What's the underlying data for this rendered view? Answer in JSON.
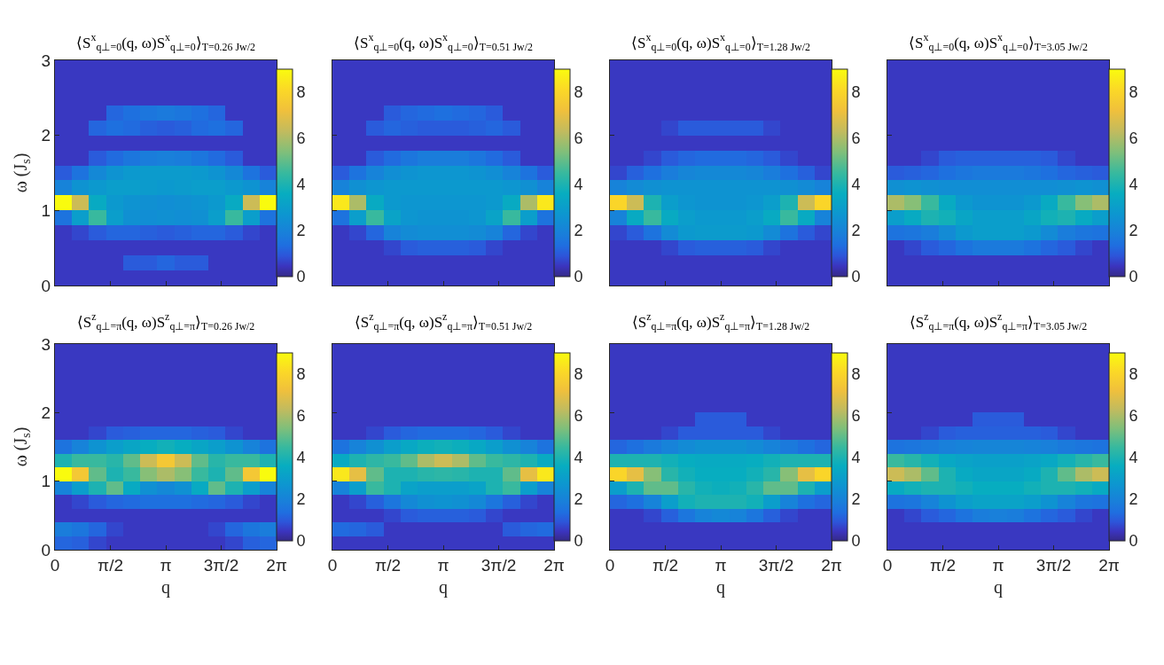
{
  "chart_data": [
    {
      "type": "heatmap",
      "title": "⟨S$^{x}$$_{q⊥=0}$(q, ω)S$^{x}$$_{q⊥=0}$⟩$_{T=0.26 Jw/2}$",
      "ylabel": "ω (J$_{s}$)",
      "tick_labels": "y",
      "clim": [
        0,
        9
      ],
      "cticks": [
        0,
        2,
        4,
        6,
        8
      ],
      "xlim": [
        0,
        6.283
      ],
      "xticks": [
        {
          "value": 0,
          "label": null
        },
        {
          "value": 1.571,
          "label": null
        },
        {
          "value": 3.142,
          "label": null
        },
        {
          "value": 4.712,
          "label": null
        },
        {
          "value": 6.283,
          "label": null
        }
      ],
      "ylim": [
        0,
        3
      ],
      "yticks": [
        0,
        1,
        2,
        3
      ],
      "x": [
        0.242,
        0.725,
        1.208,
        1.691,
        2.175,
        2.658,
        3.142,
        3.625,
        4.108,
        4.591,
        5.075,
        5.558,
        6.041
      ],
      "y": [
        2.9,
        2.7,
        2.5,
        2.3,
        2.1,
        1.9,
        1.7,
        1.5,
        1.3,
        1.1,
        0.9,
        0.7,
        0.5,
        0.3,
        0.1
      ],
      "cells": [
        [
          0.5,
          0.5,
          0.5,
          0.5,
          0.5,
          0.5,
          0.5,
          0.5,
          0.5,
          0.5,
          0.5,
          0.5,
          0.5
        ],
        [
          0.5,
          0.5,
          0.5,
          0.5,
          0.5,
          0.5,
          0.5,
          0.5,
          0.5,
          0.5,
          0.5,
          0.5,
          0.5
        ],
        [
          0.5,
          0.5,
          0.5,
          0.5,
          0.5,
          0.5,
          0.5,
          0.5,
          0.5,
          0.5,
          0.5,
          0.5,
          0.5
        ],
        [
          0.5,
          0.5,
          0.5,
          1.2,
          1.4,
          1.6,
          1.7,
          1.6,
          1.4,
          1.2,
          0.5,
          0.5,
          0.5
        ],
        [
          0.5,
          0.5,
          1.2,
          1.4,
          1.3,
          1.1,
          1,
          1.1,
          1.3,
          1.4,
          1.2,
          0.5,
          0.5
        ],
        [
          0.5,
          0.5,
          0.5,
          0.5,
          0.5,
          0.5,
          0.5,
          0.5,
          0.5,
          0.5,
          0.5,
          0.5,
          0.5
        ],
        [
          0.5,
          0.5,
          1,
          1.3,
          1.6,
          1.8,
          1.9,
          1.8,
          1.6,
          1.3,
          1,
          0.5,
          0.5
        ],
        [
          1,
          1.5,
          2.2,
          2.6,
          2.8,
          2.9,
          2.9,
          2.9,
          2.8,
          2.6,
          2.2,
          1.5,
          1
        ],
        [
          2,
          2.6,
          2.8,
          3,
          3,
          2.9,
          2.8,
          2.9,
          3,
          3,
          2.8,
          2.6,
          2
        ],
        [
          9,
          6.5,
          3.5,
          2.8,
          2.6,
          2.5,
          2.4,
          2.5,
          2.6,
          2.8,
          3.5,
          6.5,
          9
        ],
        [
          1.5,
          3,
          4.5,
          3,
          2.5,
          2.4,
          2.5,
          2.4,
          2.5,
          3,
          4.5,
          3,
          1.5
        ],
        [
          0.5,
          0.7,
          1,
          1.2,
          1.2,
          1.1,
          1,
          1.1,
          1.2,
          1.2,
          1,
          0.7,
          0.5
        ],
        [
          0.5,
          0.5,
          0.5,
          0.5,
          0.5,
          0.5,
          0.5,
          0.5,
          0.5,
          0.5,
          0.5,
          0.5,
          0.5
        ],
        [
          0.5,
          0.5,
          0.5,
          0.5,
          1,
          1,
          1.2,
          1,
          1,
          0.5,
          0.5,
          0.5,
          0.5
        ],
        [
          0.5,
          0.5,
          0.5,
          0.5,
          0.5,
          0.5,
          0.5,
          0.5,
          0.5,
          0.5,
          0.5,
          0.5,
          0.5
        ]
      ]
    },
    {
      "type": "heatmap",
      "title": "⟨S$^{x}$$_{q⊥=0}$(q, ω)S$^{x}$$_{q⊥=0}$⟩$_{T=0.51 Jw/2}$",
      "tick_labels": false,
      "clim": [
        0,
        9
      ],
      "cticks": [
        0,
        2,
        4,
        6,
        8
      ],
      "xlim": [
        0,
        6.283
      ],
      "xticks": [
        {
          "value": 0,
          "label": null
        },
        {
          "value": 1.571,
          "label": null
        },
        {
          "value": 3.142,
          "label": null
        },
        {
          "value": 4.712,
          "label": null
        },
        {
          "value": 6.283,
          "label": null
        }
      ],
      "ylim": [
        0,
        3
      ],
      "yticks": [
        0,
        1,
        2,
        3
      ],
      "x": [
        0.242,
        0.725,
        1.208,
        1.691,
        2.175,
        2.658,
        3.142,
        3.625,
        4.108,
        4.591,
        5.075,
        5.558,
        6.041
      ],
      "y": [
        2.9,
        2.7,
        2.5,
        2.3,
        2.1,
        1.9,
        1.7,
        1.5,
        1.3,
        1.1,
        0.9,
        0.7,
        0.5,
        0.3,
        0.1
      ],
      "cells": [
        [
          0.5,
          0.5,
          0.5,
          0.5,
          0.5,
          0.5,
          0.5,
          0.5,
          0.5,
          0.5,
          0.5,
          0.5,
          0.5
        ],
        [
          0.5,
          0.5,
          0.5,
          0.5,
          0.5,
          0.5,
          0.5,
          0.5,
          0.5,
          0.5,
          0.5,
          0.5,
          0.5
        ],
        [
          0.5,
          0.5,
          0.5,
          0.5,
          0.5,
          0.5,
          0.5,
          0.5,
          0.5,
          0.5,
          0.5,
          0.5,
          0.5
        ],
        [
          0.5,
          0.5,
          0.5,
          1,
          1.2,
          1.3,
          1.4,
          1.3,
          1.2,
          1,
          0.5,
          0.5,
          0.5
        ],
        [
          0.5,
          0.5,
          1,
          1.2,
          1.1,
          1,
          1,
          1,
          1.1,
          1.2,
          1,
          0.5,
          0.5
        ],
        [
          0.5,
          0.5,
          0.5,
          0.5,
          0.5,
          0.5,
          0.5,
          0.5,
          0.5,
          0.5,
          0.5,
          0.5,
          0.5
        ],
        [
          0.5,
          0.5,
          1,
          1.3,
          1.6,
          1.8,
          1.8,
          1.8,
          1.6,
          1.3,
          1,
          0.5,
          0.5
        ],
        [
          1,
          1.5,
          2,
          2.4,
          2.6,
          2.7,
          2.7,
          2.7,
          2.6,
          2.4,
          2,
          1.5,
          1
        ],
        [
          2,
          2.5,
          2.7,
          2.8,
          2.8,
          2.8,
          2.8,
          2.8,
          2.8,
          2.8,
          2.7,
          2.5,
          2
        ],
        [
          8.5,
          6,
          3.5,
          2.8,
          2.7,
          2.7,
          2.7,
          2.7,
          2.7,
          2.8,
          3.5,
          6,
          8.5
        ],
        [
          1.5,
          3,
          4.5,
          3.2,
          2.7,
          2.6,
          2.6,
          2.6,
          2.7,
          3.2,
          4.5,
          3,
          1.5
        ],
        [
          0.5,
          0.7,
          1.2,
          2,
          2.3,
          2.4,
          2.4,
          2.4,
          2.3,
          2,
          1.2,
          0.7,
          0.5
        ],
        [
          0.5,
          0.5,
          0.5,
          0.7,
          1,
          1.1,
          1.1,
          1.1,
          1,
          0.7,
          0.5,
          0.5,
          0.5
        ],
        [
          0.5,
          0.5,
          0.5,
          0.5,
          0.5,
          0.5,
          0.5,
          0.5,
          0.5,
          0.5,
          0.5,
          0.5,
          0.5
        ],
        [
          0.5,
          0.5,
          0.5,
          0.5,
          0.5,
          0.5,
          0.5,
          0.5,
          0.5,
          0.5,
          0.5,
          0.5,
          0.5
        ]
      ]
    },
    {
      "type": "heatmap",
      "title": "⟨S$^{x}$$_{q⊥=0}$(q, ω)S$^{x}$$_{q⊥=0}$⟩$_{T=1.28 Jw/2}$",
      "tick_labels": false,
      "clim": [
        0,
        9
      ],
      "cticks": [
        0,
        2,
        4,
        6,
        8
      ],
      "xlim": [
        0,
        6.283
      ],
      "xticks": [
        {
          "value": 0,
          "label": null
        },
        {
          "value": 1.571,
          "label": null
        },
        {
          "value": 3.142,
          "label": null
        },
        {
          "value": 4.712,
          "label": null
        },
        {
          "value": 6.283,
          "label": null
        }
      ],
      "ylim": [
        0,
        3
      ],
      "yticks": [
        0,
        1,
        2,
        3
      ],
      "x": [
        0.242,
        0.725,
        1.208,
        1.691,
        2.175,
        2.658,
        3.142,
        3.625,
        4.108,
        4.591,
        5.075,
        5.558,
        6.041
      ],
      "y": [
        2.9,
        2.7,
        2.5,
        2.3,
        2.1,
        1.9,
        1.7,
        1.5,
        1.3,
        1.1,
        0.9,
        0.7,
        0.5,
        0.3,
        0.1
      ],
      "cells": [
        [
          0.5,
          0.5,
          0.5,
          0.5,
          0.5,
          0.5,
          0.5,
          0.5,
          0.5,
          0.5,
          0.5,
          0.5,
          0.5
        ],
        [
          0.5,
          0.5,
          0.5,
          0.5,
          0.5,
          0.5,
          0.5,
          0.5,
          0.5,
          0.5,
          0.5,
          0.5,
          0.5
        ],
        [
          0.5,
          0.5,
          0.5,
          0.5,
          0.5,
          0.5,
          0.5,
          0.5,
          0.5,
          0.5,
          0.5,
          0.5,
          0.5
        ],
        [
          0.5,
          0.5,
          0.5,
          0.5,
          0.5,
          0.5,
          0.5,
          0.5,
          0.5,
          0.5,
          0.5,
          0.5,
          0.5
        ],
        [
          0.5,
          0.5,
          0.5,
          0.7,
          1,
          1,
          1,
          1,
          1,
          0.7,
          0.5,
          0.5,
          0.5
        ],
        [
          0.5,
          0.5,
          0.5,
          0.5,
          0.5,
          0.5,
          0.5,
          0.5,
          0.5,
          0.5,
          0.5,
          0.5,
          0.5
        ],
        [
          0.5,
          0.5,
          0.7,
          1,
          1.2,
          1.3,
          1.3,
          1.3,
          1.2,
          1,
          0.7,
          0.5,
          0.5
        ],
        [
          0.7,
          1.1,
          1.4,
          1.8,
          2.1,
          2.2,
          2.2,
          2.2,
          2.1,
          1.8,
          1.4,
          1.1,
          0.7
        ],
        [
          2,
          2.3,
          2.5,
          2.6,
          2.6,
          2.6,
          2.6,
          2.6,
          2.6,
          2.6,
          2.5,
          2.3,
          2
        ],
        [
          8,
          6.5,
          4,
          3,
          2.7,
          2.6,
          2.6,
          2.6,
          2.7,
          3,
          4,
          6.5,
          8
        ],
        [
          2,
          3.5,
          4.5,
          3.5,
          3,
          2.8,
          2.8,
          2.8,
          3,
          3.5,
          4.5,
          3.5,
          2
        ],
        [
          0.7,
          1,
          1.5,
          2.3,
          2.8,
          2.9,
          2.9,
          2.9,
          2.8,
          2.3,
          1.5,
          1,
          0.7
        ],
        [
          0.5,
          0.5,
          0.5,
          0.7,
          1,
          1.1,
          1.1,
          1.1,
          1,
          0.7,
          0.5,
          0.5,
          0.5
        ],
        [
          0.5,
          0.5,
          0.5,
          0.5,
          0.5,
          0.5,
          0.5,
          0.5,
          0.5,
          0.5,
          0.5,
          0.5,
          0.5
        ],
        [
          0.5,
          0.5,
          0.5,
          0.5,
          0.5,
          0.5,
          0.5,
          0.5,
          0.5,
          0.5,
          0.5,
          0.5,
          0.5
        ]
      ]
    },
    {
      "type": "heatmap",
      "title": "⟨S$^{x}$$_{q⊥=0}$(q, ω)S$^{x}$$_{q⊥=0}$⟩$_{T=3.05 Jw/2}$",
      "tick_labels": false,
      "clim": [
        0,
        9
      ],
      "cticks": [
        0,
        2,
        4,
        6,
        8
      ],
      "xlim": [
        0,
        6.283
      ],
      "xticks": [
        {
          "value": 0,
          "label": null
        },
        {
          "value": 1.571,
          "label": null
        },
        {
          "value": 3.142,
          "label": null
        },
        {
          "value": 4.712,
          "label": null
        },
        {
          "value": 6.283,
          "label": null
        }
      ],
      "ylim": [
        0,
        3
      ],
      "yticks": [
        0,
        1,
        2,
        3
      ],
      "x": [
        0.242,
        0.725,
        1.208,
        1.691,
        2.175,
        2.658,
        3.142,
        3.625,
        4.108,
        4.591,
        5.075,
        5.558,
        6.041
      ],
      "y": [
        2.9,
        2.7,
        2.5,
        2.3,
        2.1,
        1.9,
        1.7,
        1.5,
        1.3,
        1.1,
        0.9,
        0.7,
        0.5,
        0.3,
        0.1
      ],
      "cells": [
        [
          0.5,
          0.5,
          0.5,
          0.5,
          0.5,
          0.5,
          0.5,
          0.5,
          0.5,
          0.5,
          0.5,
          0.5,
          0.5
        ],
        [
          0.5,
          0.5,
          0.5,
          0.5,
          0.5,
          0.5,
          0.5,
          0.5,
          0.5,
          0.5,
          0.5,
          0.5,
          0.5
        ],
        [
          0.5,
          0.5,
          0.5,
          0.5,
          0.5,
          0.5,
          0.5,
          0.5,
          0.5,
          0.5,
          0.5,
          0.5,
          0.5
        ],
        [
          0.5,
          0.5,
          0.5,
          0.5,
          0.5,
          0.5,
          0.5,
          0.5,
          0.5,
          0.5,
          0.5,
          0.5,
          0.5
        ],
        [
          0.5,
          0.5,
          0.5,
          0.5,
          0.5,
          0.5,
          0.5,
          0.5,
          0.5,
          0.5,
          0.5,
          0.5,
          0.5
        ],
        [
          0.5,
          0.5,
          0.5,
          0.5,
          0.5,
          0.5,
          0.5,
          0.5,
          0.5,
          0.5,
          0.5,
          0.5,
          0.5
        ],
        [
          0.5,
          0.5,
          0.7,
          1,
          1.1,
          1.1,
          1.1,
          1.1,
          1.1,
          1,
          0.7,
          0.5,
          0.5
        ],
        [
          1,
          1.1,
          1.2,
          1.4,
          1.6,
          1.7,
          1.7,
          1.7,
          1.6,
          1.4,
          1.2,
          1.1,
          1
        ],
        [
          2.5,
          2.6,
          2.5,
          2.4,
          2.4,
          2.4,
          2.4,
          2.4,
          2.4,
          2.4,
          2.5,
          2.6,
          2.5
        ],
        [
          6,
          5.5,
          4.5,
          3.5,
          2.8,
          2.6,
          2.6,
          2.6,
          2.8,
          3.5,
          4.5,
          5.5,
          6
        ],
        [
          3,
          3.5,
          4,
          3.8,
          3.3,
          3,
          3,
          3,
          3.3,
          3.8,
          4,
          3.5,
          3
        ],
        [
          1.5,
          1.6,
          1.8,
          2.3,
          2.8,
          3,
          3,
          3,
          2.8,
          2.3,
          1.8,
          1.6,
          1.5
        ],
        [
          0.5,
          0.7,
          1,
          1.2,
          1.5,
          1.7,
          1.7,
          1.7,
          1.5,
          1.2,
          1,
          0.7,
          0.5
        ],
        [
          0.5,
          0.5,
          0.5,
          0.5,
          0.5,
          0.5,
          0.5,
          0.5,
          0.5,
          0.5,
          0.5,
          0.5,
          0.5
        ],
        [
          0.5,
          0.5,
          0.5,
          0.5,
          0.5,
          0.5,
          0.5,
          0.5,
          0.5,
          0.5,
          0.5,
          0.5,
          0.5
        ]
      ]
    },
    {
      "type": "heatmap",
      "title": "⟨S$^{z}$$_{q⊥=π}$(q, ω)S$^{z}$$_{q⊥=π}$⟩$_{T=0.26 Jw/2}$",
      "xlabel": "q",
      "ylabel": "ω (J$_{s}$)",
      "clim": [
        0,
        9
      ],
      "cticks": [
        0,
        2,
        4,
        6,
        8
      ],
      "xlim": [
        0,
        6.283
      ],
      "xticks": [
        {
          "value": 0,
          "label": "0"
        },
        {
          "value": 1.571,
          "label": "π/2"
        },
        {
          "value": 3.142,
          "label": "π"
        },
        {
          "value": 4.712,
          "label": "3π/2"
        },
        {
          "value": 6.283,
          "label": "2π"
        }
      ],
      "ylim": [
        0,
        3
      ],
      "yticks": [
        0,
        1,
        2,
        3
      ],
      "x": [
        0.242,
        0.725,
        1.208,
        1.691,
        2.175,
        2.658,
        3.142,
        3.625,
        4.108,
        4.591,
        5.075,
        5.558,
        6.041
      ],
      "y": [
        2.9,
        2.7,
        2.5,
        2.3,
        2.1,
        1.9,
        1.7,
        1.5,
        1.3,
        1.1,
        0.9,
        0.7,
        0.5,
        0.3,
        0.1
      ],
      "cells": [
        [
          0.5,
          0.5,
          0.5,
          0.5,
          0.5,
          0.5,
          0.5,
          0.5,
          0.5,
          0.5,
          0.5,
          0.5,
          0.5
        ],
        [
          0.5,
          0.5,
          0.5,
          0.5,
          0.5,
          0.5,
          0.5,
          0.5,
          0.5,
          0.5,
          0.5,
          0.5,
          0.5
        ],
        [
          0.5,
          0.5,
          0.5,
          0.5,
          0.5,
          0.5,
          0.5,
          0.5,
          0.5,
          0.5,
          0.5,
          0.5,
          0.5
        ],
        [
          0.5,
          0.5,
          0.5,
          0.5,
          0.5,
          0.5,
          0.5,
          0.5,
          0.5,
          0.5,
          0.5,
          0.5,
          0.5
        ],
        [
          0.5,
          0.5,
          0.5,
          0.5,
          0.5,
          0.5,
          0.5,
          0.5,
          0.5,
          0.5,
          0.5,
          0.5,
          0.5
        ],
        [
          0.5,
          0.5,
          0.5,
          0.5,
          0.5,
          0.5,
          0.5,
          0.5,
          0.5,
          0.5,
          0.5,
          0.5,
          0.5
        ],
        [
          0.5,
          0.5,
          0.7,
          1,
          1.1,
          1.2,
          1.2,
          1.2,
          1.1,
          1,
          0.7,
          0.5,
          0.5
        ],
        [
          1.5,
          2,
          2.6,
          3,
          3.3,
          3.6,
          3.8,
          3.6,
          3.3,
          3,
          2.6,
          2,
          1.5
        ],
        [
          4,
          4.5,
          4.5,
          4.2,
          5,
          6.5,
          7.5,
          6.5,
          5,
          4.2,
          4.5,
          4.5,
          4
        ],
        [
          9,
          7.5,
          5,
          4,
          4.5,
          5.5,
          6,
          5.5,
          4.5,
          4,
          5,
          7.5,
          9
        ],
        [
          2,
          3,
          4,
          5,
          3.5,
          2.5,
          2.2,
          2.5,
          3.5,
          5,
          4,
          3,
          2
        ],
        [
          0.5,
          0.7,
          1,
          1.2,
          1.3,
          1.4,
          1.4,
          1.4,
          1.3,
          1.2,
          1,
          0.7,
          0.5
        ],
        [
          0.5,
          0.5,
          0.5,
          0.5,
          0.5,
          0.5,
          0.5,
          0.5,
          0.5,
          0.5,
          0.5,
          0.5,
          0.5
        ],
        [
          1.8,
          1.6,
          1.2,
          0.7,
          0.5,
          0.5,
          0.5,
          0.5,
          0.5,
          0.7,
          1.2,
          1.6,
          1.8
        ],
        [
          1.2,
          1.1,
          0.7,
          0.5,
          0.5,
          0.5,
          0.5,
          0.5,
          0.5,
          0.5,
          0.7,
          1.1,
          1.2
        ]
      ]
    },
    {
      "type": "heatmap",
      "title": "⟨S$^{z}$$_{q⊥=π}$(q, ω)S$^{z}$$_{q⊥=π}$⟩$_{T=0.51 Jw/2}$",
      "xlabel": "q",
      "tick_labels": "x",
      "clim": [
        0,
        9
      ],
      "cticks": [
        0,
        2,
        4,
        6,
        8
      ],
      "xlim": [
        0,
        6.283
      ],
      "xticks": [
        {
          "value": 0,
          "label": "0"
        },
        {
          "value": 1.571,
          "label": "π/2"
        },
        {
          "value": 3.142,
          "label": "π"
        },
        {
          "value": 4.712,
          "label": "3π/2"
        },
        {
          "value": 6.283,
          "label": "2π"
        }
      ],
      "ylim": [
        0,
        3
      ],
      "yticks": [
        0,
        1,
        2,
        3
      ],
      "x": [
        0.242,
        0.725,
        1.208,
        1.691,
        2.175,
        2.658,
        3.142,
        3.625,
        4.108,
        4.591,
        5.075,
        5.558,
        6.041
      ],
      "y": [
        2.9,
        2.7,
        2.5,
        2.3,
        2.1,
        1.9,
        1.7,
        1.5,
        1.3,
        1.1,
        0.9,
        0.7,
        0.5,
        0.3,
        0.1
      ],
      "cells": [
        [
          0.5,
          0.5,
          0.5,
          0.5,
          0.5,
          0.5,
          0.5,
          0.5,
          0.5,
          0.5,
          0.5,
          0.5,
          0.5
        ],
        [
          0.5,
          0.5,
          0.5,
          0.5,
          0.5,
          0.5,
          0.5,
          0.5,
          0.5,
          0.5,
          0.5,
          0.5,
          0.5
        ],
        [
          0.5,
          0.5,
          0.5,
          0.5,
          0.5,
          0.5,
          0.5,
          0.5,
          0.5,
          0.5,
          0.5,
          0.5,
          0.5
        ],
        [
          0.5,
          0.5,
          0.5,
          0.5,
          0.5,
          0.5,
          0.5,
          0.5,
          0.5,
          0.5,
          0.5,
          0.5,
          0.5
        ],
        [
          0.5,
          0.5,
          0.5,
          0.5,
          0.5,
          0.5,
          0.5,
          0.5,
          0.5,
          0.5,
          0.5,
          0.5,
          0.5
        ],
        [
          0.5,
          0.5,
          0.5,
          0.5,
          0.5,
          0.5,
          0.5,
          0.5,
          0.5,
          0.5,
          0.5,
          0.5,
          0.5
        ],
        [
          0.5,
          0.5,
          0.7,
          1,
          1.2,
          1.3,
          1.3,
          1.3,
          1.2,
          1,
          0.7,
          0.5,
          0.5
        ],
        [
          1.5,
          2,
          2.5,
          3,
          3.4,
          3.7,
          3.8,
          3.7,
          3.4,
          3,
          2.5,
          2,
          1.5
        ],
        [
          3.5,
          4,
          4.3,
          4.5,
          5,
          6,
          6.5,
          6,
          5,
          4.5,
          4.3,
          4,
          3.5
        ],
        [
          8.5,
          7,
          5,
          4,
          4,
          4.2,
          4.3,
          4.2,
          4,
          4,
          5,
          7,
          8.5
        ],
        [
          2,
          3,
          4.5,
          4,
          3.2,
          3,
          3,
          3,
          3.2,
          4,
          4.5,
          3,
          2
        ],
        [
          0.5,
          0.7,
          1.1,
          1.6,
          2.2,
          2.5,
          2.6,
          2.5,
          2.2,
          1.6,
          1.1,
          0.7,
          0.5
        ],
        [
          0.5,
          0.5,
          0.5,
          0.7,
          1,
          1.1,
          1.1,
          1.1,
          1,
          0.7,
          0.5,
          0.5,
          0.5
        ],
        [
          1.3,
          1.2,
          1,
          0.5,
          0.5,
          0.5,
          0.5,
          0.5,
          0.5,
          0.5,
          1,
          1.2,
          1.3
        ],
        [
          0.5,
          0.5,
          0.5,
          0.5,
          0.5,
          0.5,
          0.5,
          0.5,
          0.5,
          0.5,
          0.5,
          0.5,
          0.5
        ]
      ]
    },
    {
      "type": "heatmap",
      "title": "⟨S$^{z}$$_{q⊥=π}$(q, ω)S$^{z}$$_{q⊥=π}$⟩$_{T=1.28 Jw/2}$",
      "xlabel": "q",
      "tick_labels": "x",
      "clim": [
        0,
        9
      ],
      "cticks": [
        0,
        2,
        4,
        6,
        8
      ],
      "xlim": [
        0,
        6.283
      ],
      "xticks": [
        {
          "value": 0,
          "label": "0"
        },
        {
          "value": 1.571,
          "label": "π/2"
        },
        {
          "value": 3.142,
          "label": "π"
        },
        {
          "value": 4.712,
          "label": "3π/2"
        },
        {
          "value": 6.283,
          "label": "2π"
        }
      ],
      "ylim": [
        0,
        3
      ],
      "yticks": [
        0,
        1,
        2,
        3
      ],
      "x": [
        0.242,
        0.725,
        1.208,
        1.691,
        2.175,
        2.658,
        3.142,
        3.625,
        4.108,
        4.591,
        5.075,
        5.558,
        6.041
      ],
      "y": [
        2.9,
        2.7,
        2.5,
        2.3,
        2.1,
        1.9,
        1.7,
        1.5,
        1.3,
        1.1,
        0.9,
        0.7,
        0.5,
        0.3,
        0.1
      ],
      "cells": [
        [
          0.5,
          0.5,
          0.5,
          0.5,
          0.5,
          0.5,
          0.5,
          0.5,
          0.5,
          0.5,
          0.5,
          0.5,
          0.5
        ],
        [
          0.5,
          0.5,
          0.5,
          0.5,
          0.5,
          0.5,
          0.5,
          0.5,
          0.5,
          0.5,
          0.5,
          0.5,
          0.5
        ],
        [
          0.5,
          0.5,
          0.5,
          0.5,
          0.5,
          0.5,
          0.5,
          0.5,
          0.5,
          0.5,
          0.5,
          0.5,
          0.5
        ],
        [
          0.5,
          0.5,
          0.5,
          0.5,
          0.5,
          0.5,
          0.5,
          0.5,
          0.5,
          0.5,
          0.5,
          0.5,
          0.5
        ],
        [
          0.5,
          0.5,
          0.5,
          0.5,
          0.5,
          0.5,
          0.5,
          0.5,
          0.5,
          0.5,
          0.5,
          0.5,
          0.5
        ],
        [
          0.5,
          0.5,
          0.5,
          0.5,
          0.5,
          1,
          1,
          1,
          0.5,
          0.5,
          0.5,
          0.5,
          0.5
        ],
        [
          0.5,
          0.5,
          0.5,
          0.7,
          1,
          1,
          1,
          1,
          1,
          0.7,
          0.5,
          0.5,
          0.5
        ],
        [
          1.2,
          1.4,
          1.7,
          2,
          2.3,
          2.5,
          2.5,
          2.5,
          2.3,
          2,
          1.7,
          1.4,
          1.2
        ],
        [
          4,
          4,
          4,
          3.8,
          3.6,
          3.5,
          3.5,
          3.5,
          3.6,
          3.8,
          4,
          4,
          4
        ],
        [
          8,
          7,
          5.5,
          4.2,
          3.8,
          3.6,
          3.6,
          3.6,
          3.8,
          4.2,
          5.5,
          7,
          8
        ],
        [
          3,
          4,
          5,
          5,
          4.2,
          3.8,
          3.7,
          3.8,
          4.2,
          5,
          5,
          4,
          3
        ],
        [
          1.2,
          1.4,
          2,
          3,
          3.8,
          4,
          4,
          4,
          3.8,
          3,
          2,
          1.4,
          1.2
        ],
        [
          0.5,
          0.5,
          0.7,
          1.1,
          1.6,
          2,
          2.2,
          2,
          1.6,
          1.1,
          0.7,
          0.5,
          0.5
        ],
        [
          0.5,
          0.5,
          0.5,
          0.5,
          0.5,
          0.5,
          0.5,
          0.5,
          0.5,
          0.5,
          0.5,
          0.5,
          0.5
        ],
        [
          0.5,
          0.5,
          0.5,
          0.5,
          0.5,
          0.5,
          0.5,
          0.5,
          0.5,
          0.5,
          0.5,
          0.5,
          0.5
        ]
      ]
    },
    {
      "type": "heatmap",
      "title": "⟨S$^{z}$$_{q⊥=π}$(q, ω)S$^{z}$$_{q⊥=π}$⟩$_{T=3.05 Jw/2}$",
      "xlabel": "q",
      "tick_labels": "x",
      "clim": [
        0,
        9
      ],
      "cticks": [
        0,
        2,
        4,
        6,
        8
      ],
      "xlim": [
        0,
        6.283
      ],
      "xticks": [
        {
          "value": 0,
          "label": "0"
        },
        {
          "value": 1.571,
          "label": "π/2"
        },
        {
          "value": 3.142,
          "label": "π"
        },
        {
          "value": 4.712,
          "label": "3π/2"
        },
        {
          "value": 6.283,
          "label": "2π"
        }
      ],
      "ylim": [
        0,
        3
      ],
      "yticks": [
        0,
        1,
        2,
        3
      ],
      "x": [
        0.242,
        0.725,
        1.208,
        1.691,
        2.175,
        2.658,
        3.142,
        3.625,
        4.108,
        4.591,
        5.075,
        5.558,
        6.041
      ],
      "y": [
        2.9,
        2.7,
        2.5,
        2.3,
        2.1,
        1.9,
        1.7,
        1.5,
        1.3,
        1.1,
        0.9,
        0.7,
        0.5,
        0.3,
        0.1
      ],
      "cells": [
        [
          0.5,
          0.5,
          0.5,
          0.5,
          0.5,
          0.5,
          0.5,
          0.5,
          0.5,
          0.5,
          0.5,
          0.5,
          0.5
        ],
        [
          0.5,
          0.5,
          0.5,
          0.5,
          0.5,
          0.5,
          0.5,
          0.5,
          0.5,
          0.5,
          0.5,
          0.5,
          0.5
        ],
        [
          0.5,
          0.5,
          0.5,
          0.5,
          0.5,
          0.5,
          0.5,
          0.5,
          0.5,
          0.5,
          0.5,
          0.5,
          0.5
        ],
        [
          0.5,
          0.5,
          0.5,
          0.5,
          0.5,
          0.5,
          0.5,
          0.5,
          0.5,
          0.5,
          0.5,
          0.5,
          0.5
        ],
        [
          0.5,
          0.5,
          0.5,
          0.5,
          0.5,
          0.5,
          0.5,
          0.5,
          0.5,
          0.5,
          0.5,
          0.5,
          0.5
        ],
        [
          0.5,
          0.5,
          0.5,
          0.5,
          0.5,
          1,
          1,
          1,
          0.5,
          0.5,
          0.5,
          0.5,
          0.5
        ],
        [
          0.5,
          0.5,
          0.7,
          1,
          1.1,
          1.1,
          1.1,
          1.1,
          1.1,
          1,
          0.7,
          0.5,
          0.5
        ],
        [
          1.5,
          1.6,
          1.7,
          1.9,
          2,
          2.1,
          2.1,
          2.1,
          2,
          1.9,
          1.7,
          1.6,
          1.5
        ],
        [
          4.5,
          4.2,
          3.8,
          3.4,
          3.2,
          3.1,
          3.1,
          3.1,
          3.2,
          3.4,
          3.8,
          4.2,
          4.5
        ],
        [
          6.5,
          6,
          5,
          4,
          3.5,
          3.3,
          3.3,
          3.3,
          3.5,
          4,
          5,
          6,
          6.5
        ],
        [
          3.5,
          3.8,
          4,
          4,
          3.8,
          3.6,
          3.6,
          3.6,
          3.8,
          4,
          4,
          3.8,
          3.5
        ],
        [
          1.5,
          1.6,
          2,
          2.6,
          3,
          3.2,
          3.2,
          3.2,
          3,
          2.6,
          2,
          1.6,
          1.5
        ],
        [
          0.5,
          0.7,
          1,
          1.2,
          1.5,
          1.8,
          1.9,
          1.8,
          1.5,
          1.2,
          1,
          0.7,
          0.5
        ],
        [
          0.5,
          0.5,
          0.5,
          0.5,
          0.5,
          0.5,
          0.5,
          0.5,
          0.5,
          0.5,
          0.5,
          0.5,
          0.5
        ],
        [
          0.5,
          0.5,
          0.5,
          0.5,
          0.5,
          0.5,
          0.5,
          0.5,
          0.5,
          0.5,
          0.5,
          0.5,
          0.5
        ]
      ]
    }
  ]
}
